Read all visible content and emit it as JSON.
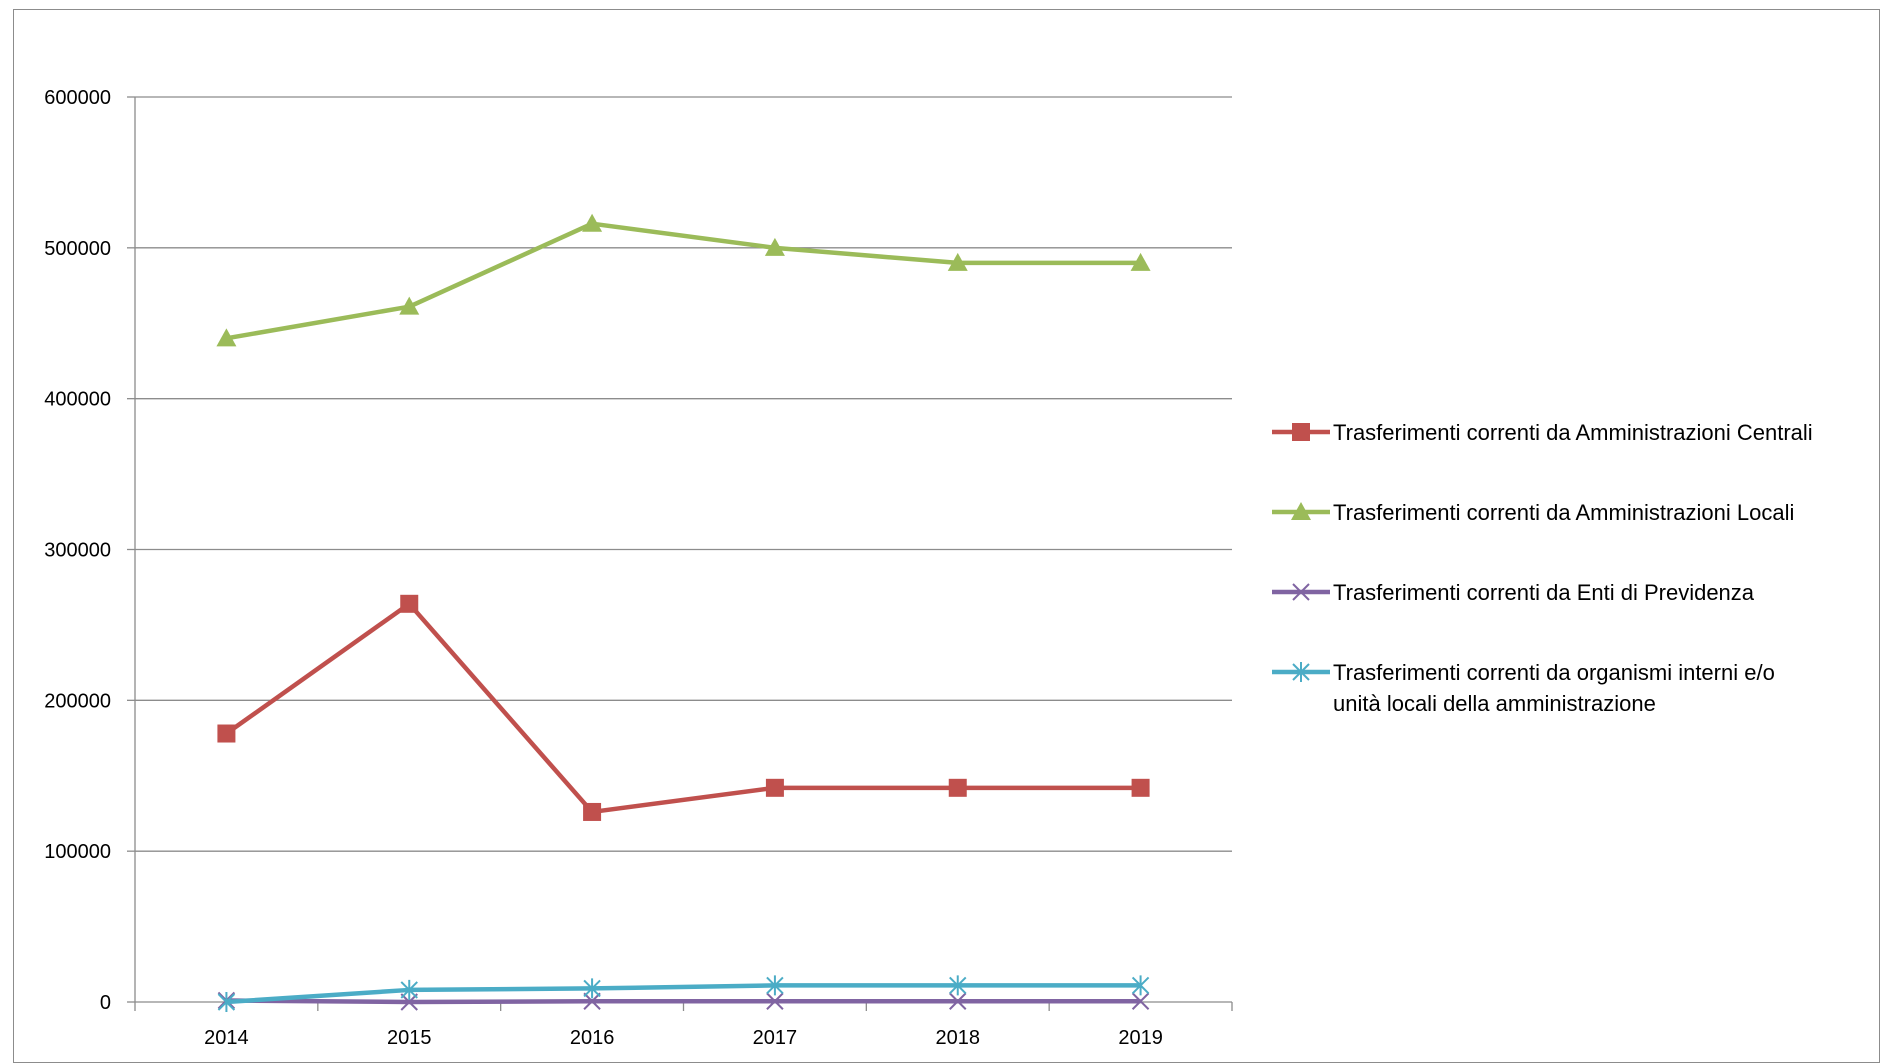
{
  "chart_data": {
    "type": "line",
    "title": "",
    "xlabel": "",
    "ylabel": "",
    "x": [
      "2014",
      "2015",
      "2016",
      "2017",
      "2018",
      "2019"
    ],
    "ylim": [
      0,
      600000
    ],
    "yticks": [
      0,
      100000,
      200000,
      300000,
      400000,
      500000,
      600000
    ],
    "grid": true,
    "legend_position": "right",
    "series": [
      {
        "name": "Trasferimenti correnti da Amministrazioni Centrali",
        "values": [
          178000,
          264000,
          126000,
          142000,
          142000,
          142000
        ],
        "color": "#c0504d",
        "marker": "square"
      },
      {
        "name": "Trasferimenti correnti da Amministrazioni Locali",
        "values": [
          440000,
          461000,
          516000,
          500000,
          490000,
          490000
        ],
        "color": "#9bbb59",
        "marker": "triangle"
      },
      {
        "name": "Trasferimenti correnti da Enti di Previdenza",
        "values": [
          1000,
          0,
          500,
          500,
          500,
          500
        ],
        "color": "#8064a2",
        "marker": "x"
      },
      {
        "name": "Trasferimenti correnti da organismi interni e/o unità locali della amministrazione",
        "values": [
          0,
          8000,
          9000,
          11000,
          11000,
          11000
        ],
        "color": "#4bacc6",
        "marker": "asterisk"
      }
    ]
  }
}
